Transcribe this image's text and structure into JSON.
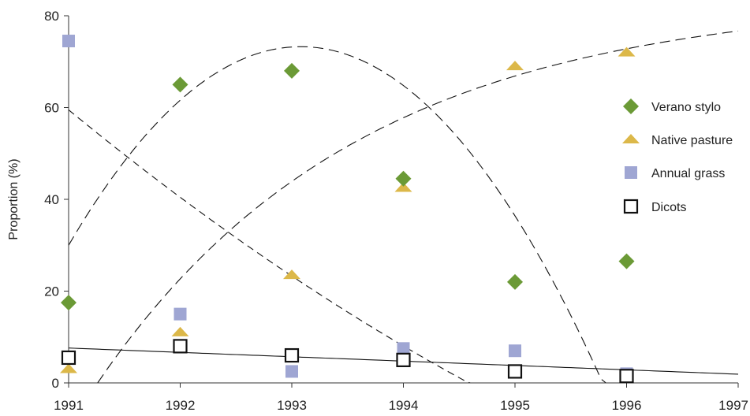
{
  "chart_data": {
    "type": "scatter",
    "title": "",
    "xlabel": "",
    "ylabel": "Proportion (%)",
    "xlim": [
      1991,
      1997
    ],
    "ylim": [
      0,
      80
    ],
    "xticks": [
      1991,
      1992,
      1993,
      1994,
      1995,
      1996,
      1997
    ],
    "yticks": [
      0,
      20,
      40,
      60,
      80
    ],
    "grid": false,
    "legend_position": "right",
    "series": [
      {
        "name": "Verano stylo",
        "marker": "diamond",
        "color": "#6b9a36",
        "points": [
          [
            1991,
            17.5
          ],
          [
            1992,
            65
          ],
          [
            1993,
            68
          ],
          [
            1994,
            44.5
          ],
          [
            1995,
            22
          ],
          [
            1996,
            26.5
          ]
        ]
      },
      {
        "name": "Native pasture",
        "marker": "triangle",
        "color": "#dcb849",
        "points": [
          [
            1991,
            3
          ],
          [
            1992,
            11
          ],
          [
            1993,
            23.5
          ],
          [
            1994,
            42.5
          ],
          [
            1995,
            69
          ],
          [
            1996,
            72
          ]
        ]
      },
      {
        "name": "Annual grass",
        "marker": "square",
        "color": "#9fa6d3",
        "points": [
          [
            1991,
            74.5
          ],
          [
            1992,
            15
          ],
          [
            1993,
            2.5
          ],
          [
            1994,
            7.5
          ],
          [
            1995,
            7
          ],
          [
            1996,
            2
          ]
        ]
      },
      {
        "name": "Dicots",
        "marker": "open-square",
        "color": "#111111",
        "points": [
          [
            1991,
            5.5
          ],
          [
            1992,
            8
          ],
          [
            1993,
            6
          ],
          [
            1994,
            5
          ],
          [
            1995,
            2.5
          ],
          [
            1996,
            1.5
          ]
        ]
      }
    ],
    "fit_lines": [
      {
        "series": "Verano stylo",
        "style": "long-dash",
        "kind": "quadratic",
        "coefficients": [
          30,
          41.6,
          -10
        ],
        "origin_year": 1991,
        "x_range": [
          1991,
          1996.35
        ]
      },
      {
        "series": "Native pasture",
        "style": "long-dash",
        "kind": "exponential-rise",
        "asymptote": 84,
        "rate": 0.425,
        "x_start": 1991.26,
        "x_range": [
          1991.26,
          1997
        ]
      },
      {
        "series": "Annual grass",
        "style": "short-dash",
        "kind": "quadratic",
        "coefficients": [
          59.5,
          -20,
          0.95
        ],
        "origin_year": 1991,
        "x_range": [
          1991,
          1994.6
        ]
      },
      {
        "series": "Dicots",
        "style": "solid",
        "kind": "linear",
        "coefficients": [
          7.6,
          -0.95
        ],
        "origin_year": 1991,
        "x_range": [
          1991,
          1997
        ]
      }
    ]
  }
}
